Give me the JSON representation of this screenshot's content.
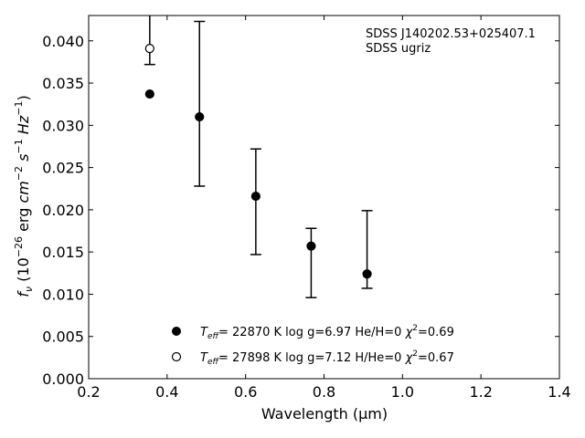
{
  "chart_data": {
    "type": "scatter",
    "title": "",
    "xlabel": "Wavelength (μm)",
    "ylabel": "f_ν (10^-26 erg cm^-2 s^-1 Hz^-1)",
    "xlim": [
      0.2,
      1.4
    ],
    "ylim": [
      0.0,
      0.043
    ],
    "xticks": [
      0.2,
      0.4,
      0.6,
      0.8,
      1.0,
      1.2,
      1.4
    ],
    "xtick_labels": [
      "0.2",
      "0.4",
      "0.6",
      "0.8",
      "1.0",
      "1.2",
      "1.4"
    ],
    "yticks": [
      0.0,
      0.005,
      0.01,
      0.015,
      0.02,
      0.025,
      0.03,
      0.035,
      0.04
    ],
    "ytick_labels": [
      "0.000",
      "0.005",
      "0.010",
      "0.015",
      "0.020",
      "0.025",
      "0.030",
      "0.035",
      "0.040"
    ],
    "annotations": [
      "SDSS J140202.53+025407.1",
      "SDSS ugriz"
    ],
    "grid": false,
    "legend_position": "bottom-center",
    "observed": {
      "x": [
        0.3557,
        0.4825,
        0.6261,
        0.7672,
        0.9097
      ],
      "y": [
        0.0391,
        0.031,
        0.0216,
        0.0157,
        0.0124
      ],
      "err_low": [
        0.0019,
        0.0082,
        0.0069,
        0.0061,
        0.0017
      ],
      "err_high": [
        0.0039,
        0.0113,
        0.0056,
        0.0021,
        0.0075
      ]
    },
    "series": [
      {
        "name": "T_eff= 22870 K  log g=6.97  He/H=0  χ²=0.69",
        "marker": "filled-circle",
        "x": [
          0.3557,
          0.4825,
          0.6261,
          0.7672,
          0.9097
        ],
        "y": [
          0.0337,
          0.031,
          0.0216,
          0.0157,
          0.0124
        ]
      },
      {
        "name": "T_eff= 27898 K  log g=7.12  H/He=0  χ²=0.67",
        "marker": "open-circle",
        "x": [
          0.3557
        ],
        "y": [
          0.0391
        ]
      }
    ]
  }
}
